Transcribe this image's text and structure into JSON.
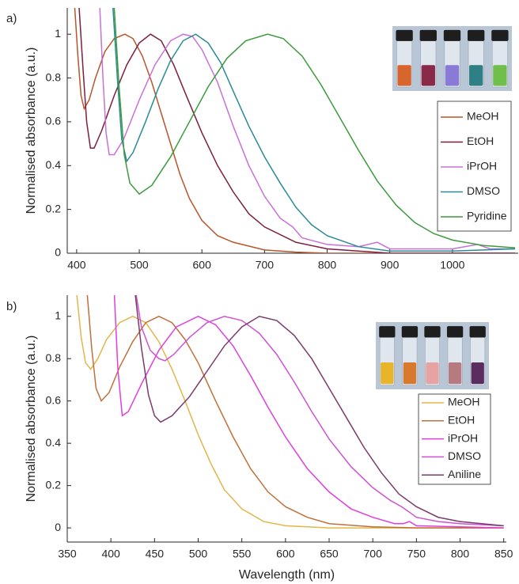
{
  "chart_data": [
    {
      "type": "line",
      "label": "a)",
      "ylabel": "Normalised absorbance (a.u.)",
      "xlim": [
        385,
        1105
      ],
      "ylim": [
        0,
        1.12
      ],
      "xticks": [
        400,
        500,
        600,
        700,
        800,
        900,
        1000
      ],
      "yticks": [
        0,
        0.2,
        0.4,
        0.6,
        0.8,
        1
      ],
      "legend": "right",
      "series": [
        {
          "name": "MeOH",
          "color": "#b8552b",
          "x": [
            397,
            402,
            407,
            412,
            420,
            430,
            445,
            460,
            477,
            490,
            505,
            520,
            535,
            550,
            565,
            580,
            600,
            625,
            650,
            700,
            750,
            800,
            900,
            1000,
            1100
          ],
          "values": [
            1.12,
            0.9,
            0.72,
            0.66,
            0.7,
            0.8,
            0.92,
            0.98,
            1.0,
            0.98,
            0.9,
            0.78,
            0.64,
            0.5,
            0.36,
            0.25,
            0.15,
            0.08,
            0.05,
            0.015,
            0.005,
            0.0,
            0.0,
            0.0,
            0.0
          ]
        },
        {
          "name": "EtOH",
          "color": "#7b1f3e",
          "x": [
            404,
            410,
            416,
            422,
            428,
            440,
            460,
            480,
            500,
            518,
            535,
            555,
            575,
            600,
            625,
            650,
            675,
            700,
            750,
            800,
            850,
            900,
            1000,
            1100
          ],
          "values": [
            1.12,
            0.85,
            0.6,
            0.48,
            0.48,
            0.56,
            0.72,
            0.86,
            0.96,
            1.0,
            0.97,
            0.86,
            0.72,
            0.55,
            0.4,
            0.28,
            0.18,
            0.12,
            0.05,
            0.02,
            0.01,
            0.0,
            0.0,
            0.0
          ]
        },
        {
          "name": "iPrOH",
          "color": "#c870d8",
          "x": [
            437,
            442,
            447,
            452,
            460,
            475,
            500,
            525,
            550,
            570,
            585,
            600,
            625,
            650,
            675,
            700,
            725,
            745,
            760,
            800,
            850,
            880,
            900,
            950,
            1000,
            1040,
            1060,
            1100
          ],
          "values": [
            1.12,
            0.8,
            0.55,
            0.45,
            0.45,
            0.52,
            0.7,
            0.86,
            0.97,
            1.0,
            0.99,
            0.93,
            0.78,
            0.58,
            0.4,
            0.26,
            0.16,
            0.12,
            0.07,
            0.04,
            0.03,
            0.05,
            0.02,
            0.02,
            0.02,
            0.04,
            0.02,
            0.02
          ]
        },
        {
          "name": "DMSO",
          "color": "#2a8a96",
          "x": [
            458,
            465,
            472,
            480,
            490,
            510,
            530,
            550,
            570,
            590,
            610,
            630,
            650,
            675,
            700,
            725,
            750,
            775,
            800,
            850,
            900,
            1000,
            1100
          ],
          "values": [
            1.12,
            0.8,
            0.52,
            0.42,
            0.46,
            0.6,
            0.75,
            0.88,
            0.97,
            1.0,
            0.96,
            0.87,
            0.74,
            0.58,
            0.44,
            0.32,
            0.21,
            0.13,
            0.08,
            0.03,
            0.01,
            0.01,
            0.02
          ]
        },
        {
          "name": "Pyridine",
          "color": "#3c9b3c",
          "x": [
            460,
            468,
            476,
            485,
            500,
            520,
            550,
            580,
            610,
            640,
            670,
            705,
            730,
            760,
            790,
            820,
            850,
            880,
            910,
            940,
            970,
            1000,
            1050,
            1100
          ],
          "values": [
            1.12,
            0.75,
            0.45,
            0.32,
            0.27,
            0.31,
            0.44,
            0.6,
            0.76,
            0.89,
            0.97,
            1.0,
            0.98,
            0.9,
            0.77,
            0.62,
            0.47,
            0.33,
            0.22,
            0.14,
            0.09,
            0.06,
            0.035,
            0.025
          ]
        }
      ]
    },
    {
      "type": "line",
      "label": "b)",
      "ylabel": "Normalised absorbance (a.u.)",
      "xlabel": "Wavelength (nm)",
      "xlim": [
        350,
        853
      ],
      "ylim": [
        -0.067,
        1.1
      ],
      "xticks": [
        350,
        400,
        450,
        500,
        550,
        600,
        650,
        700,
        750,
        800,
        850
      ],
      "yticks": [
        0,
        0.2,
        0.4,
        0.6,
        0.8,
        1
      ],
      "legend": "right",
      "series": [
        {
          "name": "MeOH",
          "color": "#e3b64b",
          "x": [
            361,
            366,
            371,
            377,
            385,
            395,
            410,
            425,
            440,
            455,
            470,
            485,
            500,
            515,
            530,
            550,
            575,
            600,
            650,
            700,
            750,
            800,
            850
          ],
          "values": [
            1.1,
            0.9,
            0.78,
            0.75,
            0.8,
            0.89,
            0.97,
            1.0,
            0.97,
            0.88,
            0.75,
            0.6,
            0.44,
            0.3,
            0.18,
            0.09,
            0.03,
            0.01,
            0.0,
            0.0,
            0.0,
            0.0,
            0.0
          ]
        },
        {
          "name": "EtOH",
          "color": "#c0703a",
          "x": [
            373,
            378,
            383,
            389,
            398,
            410,
            425,
            440,
            455,
            470,
            485,
            500,
            520,
            540,
            560,
            580,
            600,
            625,
            650,
            700,
            750,
            850
          ],
          "values": [
            1.1,
            0.85,
            0.66,
            0.6,
            0.64,
            0.76,
            0.88,
            0.97,
            1.0,
            0.97,
            0.89,
            0.78,
            0.6,
            0.43,
            0.28,
            0.17,
            0.1,
            0.05,
            0.02,
            0.005,
            0.0,
            0.0
          ]
        },
        {
          "name": "iPrOH",
          "color": "#e03ee0",
          "x": [
            404,
            408,
            413,
            420,
            435,
            455,
            475,
            500,
            520,
            540,
            560,
            580,
            600,
            625,
            650,
            675,
            700,
            725,
            735,
            742,
            750,
            800,
            850
          ],
          "values": [
            1.1,
            0.75,
            0.53,
            0.55,
            0.68,
            0.84,
            0.95,
            1.0,
            0.96,
            0.86,
            0.72,
            0.57,
            0.43,
            0.28,
            0.17,
            0.09,
            0.05,
            0.02,
            0.02,
            0.03,
            0.01,
            0.005,
            0.0
          ]
        },
        {
          "name": "DMSO",
          "color": "#cf52d2",
          "x": [
            429,
            435,
            445,
            455,
            462,
            472,
            490,
            510,
            530,
            550,
            570,
            590,
            610,
            630,
            650,
            675,
            700,
            720,
            733,
            740,
            750,
            775,
            800,
            850
          ],
          "values": [
            1.1,
            0.95,
            0.84,
            0.8,
            0.79,
            0.82,
            0.9,
            0.97,
            1.0,
            0.98,
            0.92,
            0.82,
            0.69,
            0.55,
            0.42,
            0.29,
            0.19,
            0.13,
            0.1,
            0.08,
            0.05,
            0.03,
            0.02,
            0.01
          ]
        },
        {
          "name": "Aniline",
          "color": "#7a3b6c",
          "x": [
            428,
            435,
            443,
            450,
            457,
            470,
            490,
            510,
            530,
            550,
            570,
            590,
            610,
            630,
            650,
            670,
            690,
            710,
            730,
            750,
            775,
            800,
            850
          ],
          "values": [
            1.1,
            0.85,
            0.63,
            0.53,
            0.5,
            0.53,
            0.62,
            0.74,
            0.86,
            0.95,
            1.0,
            0.98,
            0.91,
            0.8,
            0.66,
            0.52,
            0.38,
            0.26,
            0.16,
            0.1,
            0.05,
            0.03,
            0.01
          ]
        }
      ]
    }
  ]
}
